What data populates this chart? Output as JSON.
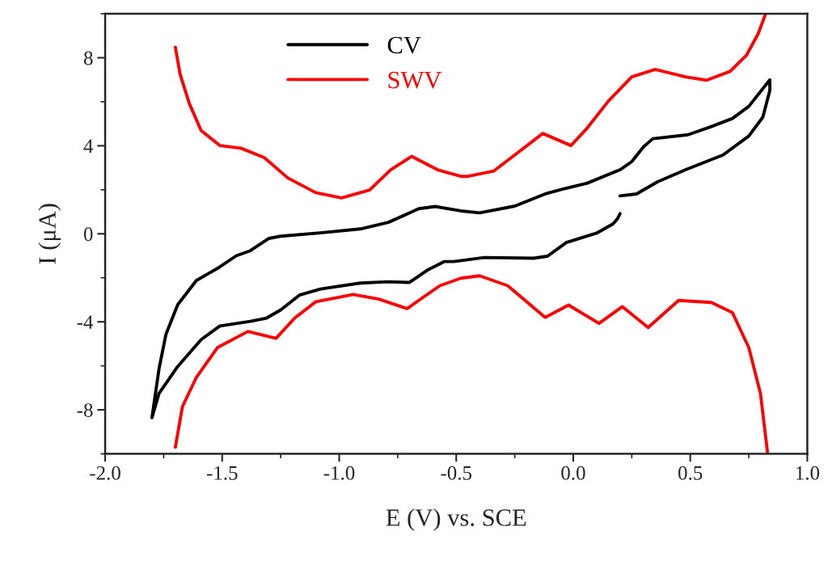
{
  "chart_data": {
    "type": "line",
    "xlabel": "E (V) vs. SCE",
    "ylabel": "I (μA)",
    "xlim": [
      -2.0,
      1.0
    ],
    "xticks": [
      {
        "value": -2.0,
        "label": "-2.0"
      },
      {
        "value": -1.5,
        "label": "-1.5"
      },
      {
        "value": -1.0,
        "label": "-1.0"
      },
      {
        "value": -0.5,
        "label": "-0.5"
      },
      {
        "value": 0.0,
        "label": "0.0"
      },
      {
        "value": 0.5,
        "label": "0.5"
      },
      {
        "value": 1.0,
        "label": "1.0"
      }
    ],
    "ylim": [
      -10,
      10
    ],
    "yticks": [
      -8,
      -4,
      0,
      4,
      8
    ],
    "legend": "top",
    "grid": false,
    "marker": "none",
    "line_style": "solid",
    "series": [
      {
        "name": "CV",
        "color": "#000000",
        "x": [
          0.2,
          0.27,
          0.36,
          0.48,
          0.64,
          0.75,
          0.81,
          0.84,
          0.84,
          0.75,
          0.68,
          0.59,
          0.49,
          0.34,
          0.3,
          0.25,
          0.2,
          0.06,
          -0.05,
          -0.12,
          -0.25,
          -0.4,
          -0.48,
          -0.59,
          -0.66,
          -0.79,
          -0.91,
          -1.08,
          -1.25,
          -1.3,
          -1.38,
          -1.44,
          -1.52,
          -1.61,
          -1.69,
          -1.74,
          -1.77,
          -1.8,
          -1.77,
          -1.69,
          -1.59,
          -1.51,
          -1.38,
          -1.31,
          -1.25,
          -1.17,
          -1.08,
          -0.91,
          -0.79,
          -0.7,
          -0.62,
          -0.55,
          -0.51,
          -0.38,
          -0.17,
          -0.11,
          -0.03,
          0.1,
          0.17,
          0.19,
          0.2
        ],
        "values": [
          1.72,
          1.81,
          2.36,
          2.91,
          3.58,
          4.44,
          5.3,
          6.52,
          7.0,
          5.79,
          5.24,
          4.87,
          4.5,
          4.32,
          3.95,
          3.28,
          2.91,
          2.3,
          2.02,
          1.81,
          1.26,
          0.95,
          1.04,
          1.24,
          1.14,
          0.52,
          0.22,
          0.04,
          -0.11,
          -0.21,
          -0.77,
          -1.0,
          -1.57,
          -2.12,
          -3.22,
          -4.56,
          -6.15,
          -8.36,
          -7.26,
          -6.03,
          -4.81,
          -4.19,
          -3.98,
          -3.83,
          -3.46,
          -2.79,
          -2.51,
          -2.24,
          -2.18,
          -2.21,
          -1.63,
          -1.26,
          -1.26,
          -1.08,
          -1.11,
          -1.02,
          -0.4,
          0.03,
          0.45,
          0.7,
          0.92
        ]
      },
      {
        "name": "SWV",
        "color": "#ff0000",
        "x": [
          -1.7,
          -1.68,
          -1.64,
          -1.59,
          -1.51,
          -1.42,
          -1.32,
          -1.22,
          -1.1,
          -0.99,
          -0.87,
          -0.78,
          -0.69,
          -0.58,
          -0.48,
          -0.45,
          -0.34,
          -0.25,
          -0.13,
          -0.01,
          0.06,
          0.15,
          0.25,
          0.35,
          0.48,
          0.57,
          0.67,
          0.74,
          0.79,
          0.82,
          null,
          -1.7,
          -1.67,
          -1.61,
          -1.52,
          -1.39,
          -1.27,
          -1.19,
          -1.1,
          -0.94,
          -0.83,
          -0.71,
          -0.57,
          -0.48,
          -0.4,
          -0.28,
          -0.12,
          -0.02,
          0.11,
          0.21,
          0.32,
          0.45,
          0.59,
          0.68,
          0.75,
          0.8,
          0.83
        ],
        "values": [
          8.48,
          7.26,
          5.91,
          4.69,
          4.01,
          3.89,
          3.46,
          2.54,
          1.87,
          1.63,
          1.99,
          2.91,
          3.52,
          2.91,
          2.61,
          2.61,
          2.85,
          3.58,
          4.56,
          4.01,
          4.81,
          6.03,
          7.13,
          7.47,
          7.13,
          6.98,
          7.38,
          8.11,
          9.09,
          9.94,
          null,
          -9.7,
          -7.86,
          -6.52,
          -5.17,
          -4.44,
          -4.75,
          -3.83,
          -3.09,
          -2.76,
          -2.97,
          -3.4,
          -2.36,
          -2.02,
          -1.91,
          -2.36,
          -3.8,
          -3.24,
          -4.07,
          -3.31,
          -4.26,
          -3.03,
          -3.12,
          -3.58,
          -5.17,
          -7.26,
          -9.94
        ]
      }
    ]
  }
}
